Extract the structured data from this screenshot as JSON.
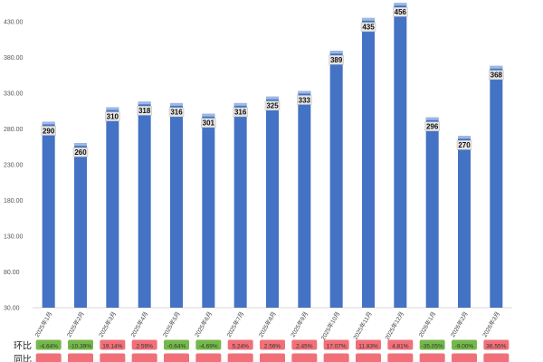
{
  "chart_data": {
    "type": "bar",
    "categories": [
      "2025年1月",
      "2025年2月",
      "2025年3月",
      "2025年4月",
      "2025年5月",
      "2025年6月",
      "2025年7月",
      "2025年8月",
      "2025年9月",
      "2025年10月",
      "2025年11月",
      "2025年12月",
      "2026年1月",
      "2026年2月",
      "2026年3月"
    ],
    "values": [
      290,
      260,
      310,
      318,
      316,
      301,
      316,
      325,
      333,
      389,
      435,
      456,
      296,
      270,
      368
    ],
    "data_labels": [
      "290",
      "260",
      "310",
      "318",
      "316",
      "301",
      "316",
      "325",
      "333",
      "389",
      "435",
      "456",
      "296",
      "270",
      "368"
    ],
    "yticks": [
      "30.00",
      "80.00",
      "130.00",
      "180.00",
      "230.00",
      "280.00",
      "330.00",
      "380.00",
      "430.00"
    ],
    "ylim": [
      30,
      450
    ],
    "grid": false,
    "bar_color": "#4472C4",
    "table_rows": [
      {
        "label": "环比",
        "values": [
          "-4.64%",
          "-10.39%",
          "19.14%",
          "2.59%",
          "-0.64%",
          "-4.69%",
          "5.24%",
          "2.56%",
          "2.45%",
          "17.07%",
          "11.83%",
          "4.81%",
          "-35.05%",
          "-9.00%",
          "36.55%"
        ]
      },
      {
        "label": "同比",
        "values": [
          "",
          "",
          "",
          "",
          "",
          "",
          "",
          "",
          "",
          "",
          "",
          "",
          "",
          "",
          ""
        ]
      }
    ],
    "positive_color": "#f0707a",
    "negative_color": "#74b84a"
  }
}
